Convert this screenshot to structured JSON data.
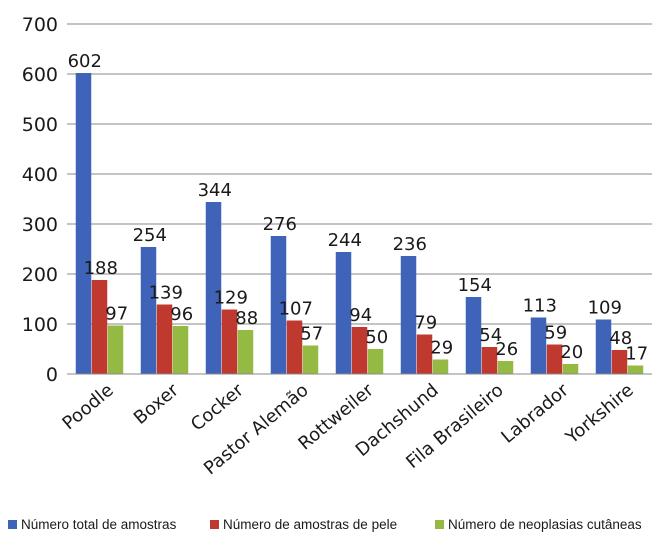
{
  "chart_data": {
    "type": "bar",
    "title": "",
    "xlabel": "",
    "ylabel": "",
    "ylim": [
      0,
      700
    ],
    "yticks": [
      0,
      100,
      200,
      300,
      400,
      500,
      600,
      700
    ],
    "grid": true,
    "legend_position": "bottom",
    "categories": [
      "Poodle",
      "Boxer",
      "Cocker",
      "Pastor Alemão",
      "Rottweiler",
      "Dachshund",
      "Fila Brasileiro",
      "Labrador",
      "Yorkshire"
    ],
    "series": [
      {
        "name": "Número total de amostras",
        "color": "#3f63b8",
        "values": [
          602,
          254,
          344,
          276,
          244,
          236,
          154,
          113,
          109
        ]
      },
      {
        "name": "Número de amostras de pele",
        "color": "#c0392f",
        "values": [
          188,
          139,
          129,
          107,
          94,
          79,
          54,
          59,
          48
        ]
      },
      {
        "name": "Número de neoplasias cutâneas",
        "color": "#94ba44",
        "values": [
          97,
          96,
          88,
          57,
          50,
          29,
          26,
          20,
          17
        ]
      }
    ]
  }
}
